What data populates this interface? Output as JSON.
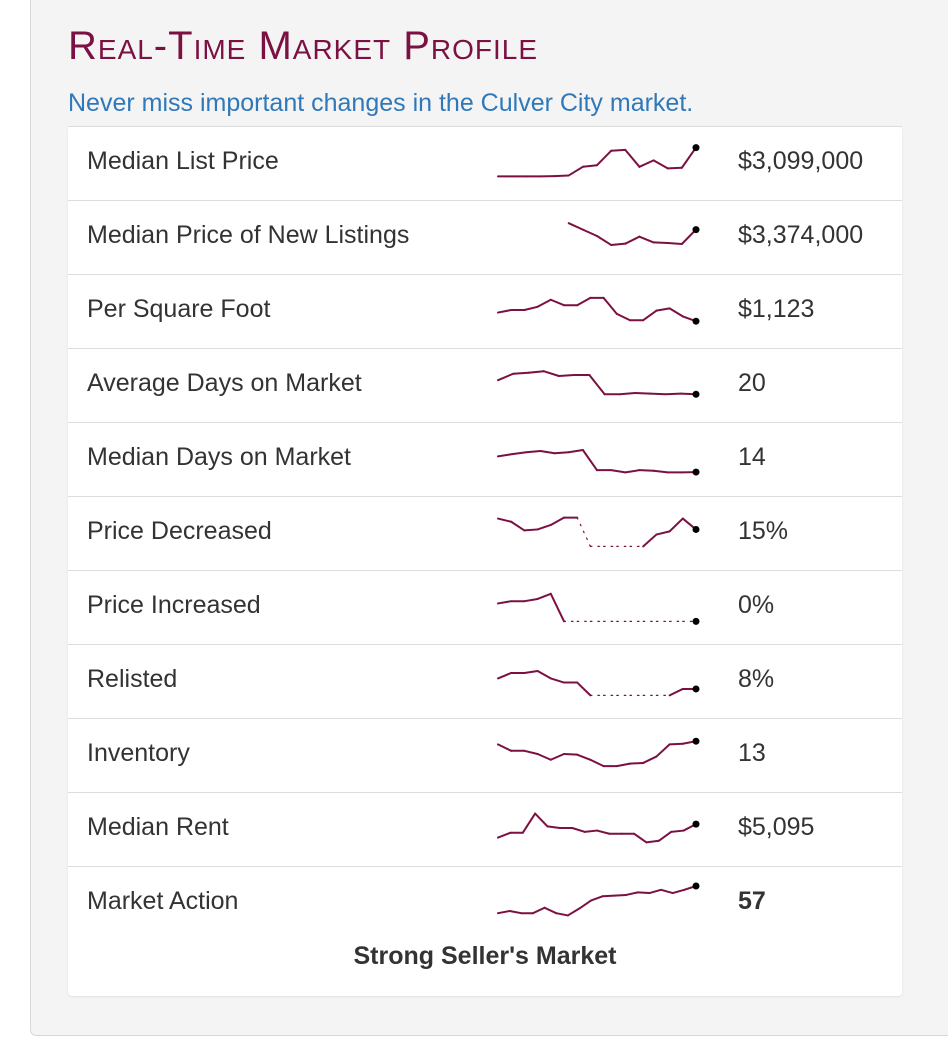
{
  "header": {
    "title": "Real-Time Market Profile",
    "subtitle": "Never miss important changes in the Culver City market."
  },
  "colors": {
    "title": "#7b1142",
    "subtitle": "#2f78b9",
    "sparkline": "#7b1142",
    "text": "#333333"
  },
  "rows": [
    {
      "label": "Median List Price",
      "value": "$3,099,000",
      "trend": [
        0.05,
        0.05,
        0.05,
        0.05,
        0.06,
        0.08,
        0.35,
        0.4,
        0.85,
        0.88,
        0.35,
        0.55,
        0.3,
        0.32,
        0.95
      ],
      "dashed": []
    },
    {
      "label": "Median Price of New Listings",
      "value": "$3,374,000",
      "trend": [
        null,
        null,
        null,
        null,
        null,
        0.9,
        0.7,
        0.5,
        0.22,
        0.26,
        0.48,
        0.3,
        0.28,
        0.25,
        0.7
      ],
      "dashed": []
    },
    {
      "label": "Per Square Foot",
      "value": "$1,123",
      "trend": [
        0.42,
        0.5,
        0.5,
        0.6,
        0.82,
        0.65,
        0.65,
        0.88,
        0.88,
        0.38,
        0.18,
        0.18,
        0.48,
        0.55,
        0.3,
        0.15
      ],
      "dashed": []
    },
    {
      "label": "Average Days on Market",
      "value": "20",
      "trend": [
        0.62,
        0.82,
        0.85,
        0.9,
        0.75,
        0.78,
        0.78,
        0.18,
        0.18,
        0.22,
        0.2,
        0.18,
        0.2,
        0.18
      ],
      "dashed": []
    },
    {
      "label": "Median Days on Market",
      "value": "14",
      "trend": [
        0.55,
        0.62,
        0.68,
        0.72,
        0.65,
        0.68,
        0.75,
        0.12,
        0.12,
        0.05,
        0.12,
        0.1,
        0.05,
        0.05,
        0.06
      ],
      "dashed": []
    },
    {
      "label": "Price Decreased",
      "value": "15%",
      "trend": [
        0.92,
        0.82,
        0.55,
        0.58,
        0.72,
        0.95,
        0.95,
        0.05,
        0.05,
        0.05,
        0.05,
        0.05,
        0.42,
        0.52,
        0.92,
        0.58
      ],
      "dashed": [
        6,
        7,
        8,
        9,
        10,
        11
      ]
    },
    {
      "label": "Price Increased",
      "value": "0%",
      "trend": [
        0.58,
        0.65,
        0.65,
        0.72,
        0.88,
        0.02,
        0.02,
        0.02,
        0.02,
        0.02,
        0.02,
        0.02,
        0.02,
        0.02,
        0.02,
        0.02
      ],
      "dashed": [
        5,
        6,
        7,
        8,
        9,
        10,
        11,
        12,
        13,
        14,
        15
      ]
    },
    {
      "label": "Relisted",
      "value": "8%",
      "trend": [
        0.55,
        0.72,
        0.72,
        0.78,
        0.55,
        0.42,
        0.42,
        0.02,
        0.02,
        0.02,
        0.02,
        0.02,
        0.02,
        0.02,
        0.22,
        0.22
      ],
      "dashed": [
        7,
        8,
        9,
        10,
        11,
        12,
        13
      ]
    },
    {
      "label": "Inventory",
      "value": "13",
      "trend": [
        0.8,
        0.6,
        0.6,
        0.5,
        0.32,
        0.5,
        0.48,
        0.32,
        0.12,
        0.12,
        0.2,
        0.22,
        0.42,
        0.8,
        0.82,
        0.9
      ],
      "dashed": []
    },
    {
      "label": "Median Rent",
      "value": "$5,095",
      "trend": [
        0.2,
        0.35,
        0.35,
        0.95,
        0.55,
        0.5,
        0.5,
        0.38,
        0.42,
        0.32,
        0.32,
        0.32,
        0.05,
        0.1,
        0.38,
        0.42,
        0.62
      ],
      "dashed": []
    },
    {
      "label": "Market Action",
      "value": "57",
      "trend": [
        0.15,
        0.22,
        0.15,
        0.15,
        0.32,
        0.15,
        0.08,
        0.3,
        0.55,
        0.68,
        0.7,
        0.72,
        0.8,
        0.78,
        0.88,
        0.78,
        0.88,
        1.0
      ],
      "dashed": []
    }
  ],
  "verdict": "Strong Seller's Market"
}
